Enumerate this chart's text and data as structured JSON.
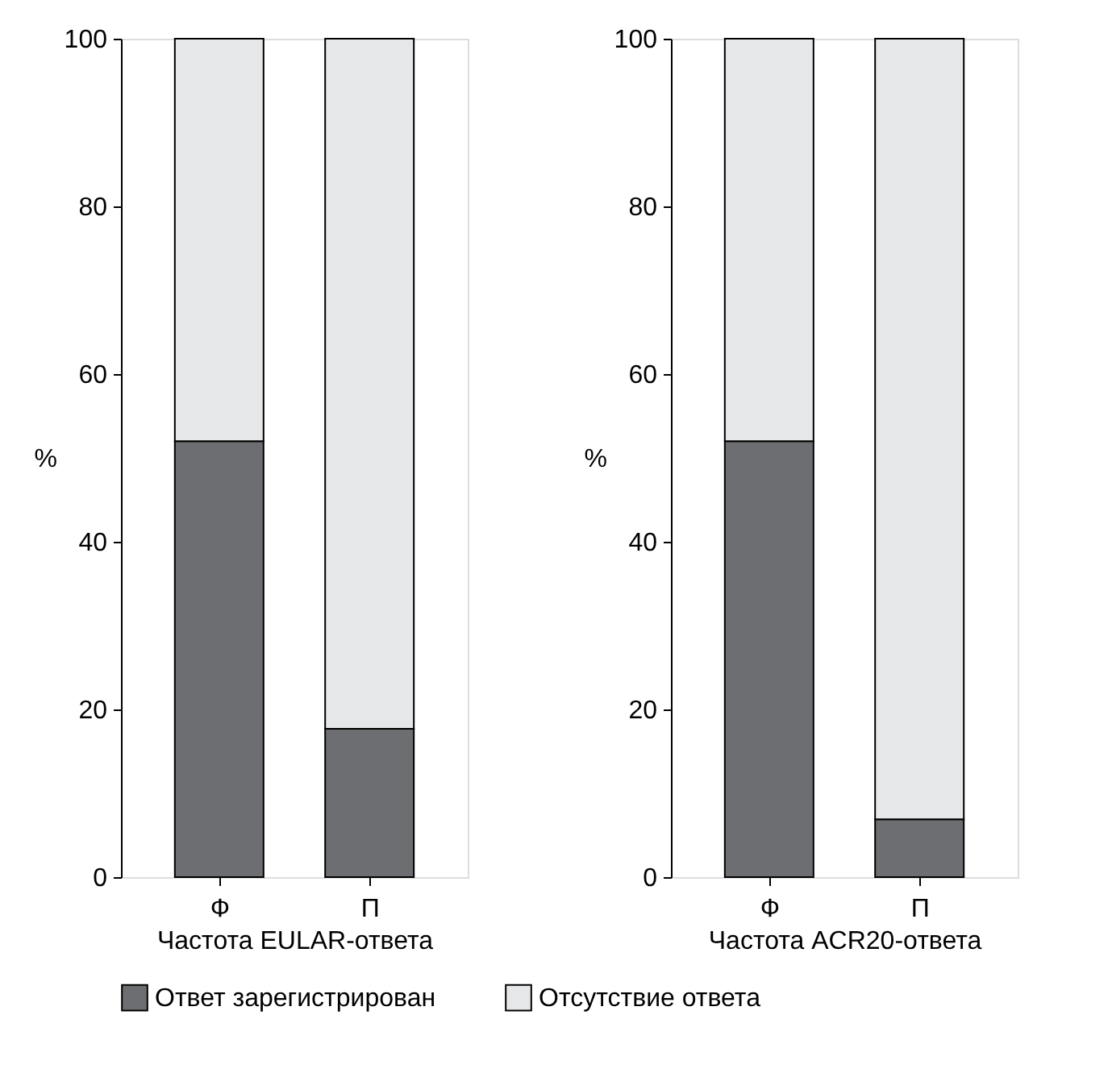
{
  "chart_data": [
    {
      "type": "bar",
      "stacked": true,
      "categories": [
        "Ф",
        "П"
      ],
      "xlabel": "Частота EULAR-ответа",
      "ylabel": "%",
      "ylim": [
        0,
        100
      ],
      "yticks": [
        0,
        20,
        40,
        60,
        80,
        100
      ],
      "grid": false,
      "legend": "bottom",
      "series": [
        {
          "name": "Ответ зарегистрирован",
          "color": "#6d6e71",
          "values": [
            52,
            17.7
          ]
        },
        {
          "name": "Отсутствие ответа",
          "color": "#e6e7e8",
          "values": [
            48,
            82.3
          ]
        }
      ]
    },
    {
      "type": "bar",
      "stacked": true,
      "categories": [
        "Ф",
        "П"
      ],
      "xlabel": "Частота ACR20-ответа",
      "ylabel": "%",
      "ylim": [
        0,
        100
      ],
      "yticks": [
        0,
        20,
        40,
        60,
        80,
        100
      ],
      "grid": false,
      "legend": "bottom",
      "series": [
        {
          "name": "Ответ зарегистрирован",
          "color": "#6d6e71",
          "values": [
            52,
            6.9
          ]
        },
        {
          "name": "Отсутствие ответа",
          "color": "#e6e7e8",
          "values": [
            48,
            93.1
          ]
        }
      ]
    }
  ]
}
